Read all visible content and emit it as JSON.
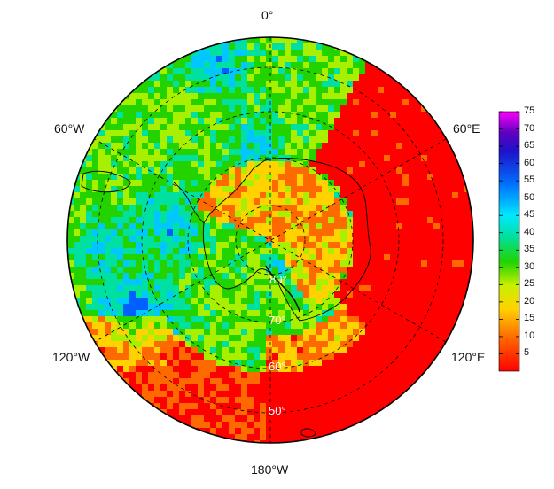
{
  "map": {
    "projection": "south polar stereographic",
    "region": "Antarctica / Southern Ocean",
    "longitude_labels": {
      "top": "0°",
      "upper_left": "60°W",
      "upper_right": "60°E",
      "lower_left": "120°W",
      "lower_right": "120°E",
      "bottom": "180°W"
    },
    "latitude_labels": [
      "80°",
      "70°",
      "60°",
      "50°"
    ],
    "colormap": [
      "#ff0000",
      "#ff6a00",
      "#ffd200",
      "#a8f000",
      "#22d300",
      "#00e0a0",
      "#00c8ff",
      "#0060ff",
      "#4000c0",
      "#ff00ff"
    ]
  },
  "colorbar": {
    "min": 0,
    "max": 75,
    "ticks": [
      "75",
      "70",
      "65",
      "60",
      "55",
      "50",
      "45",
      "40",
      "35",
      "30",
      "25",
      "20",
      "15",
      "10",
      "5"
    ]
  }
}
